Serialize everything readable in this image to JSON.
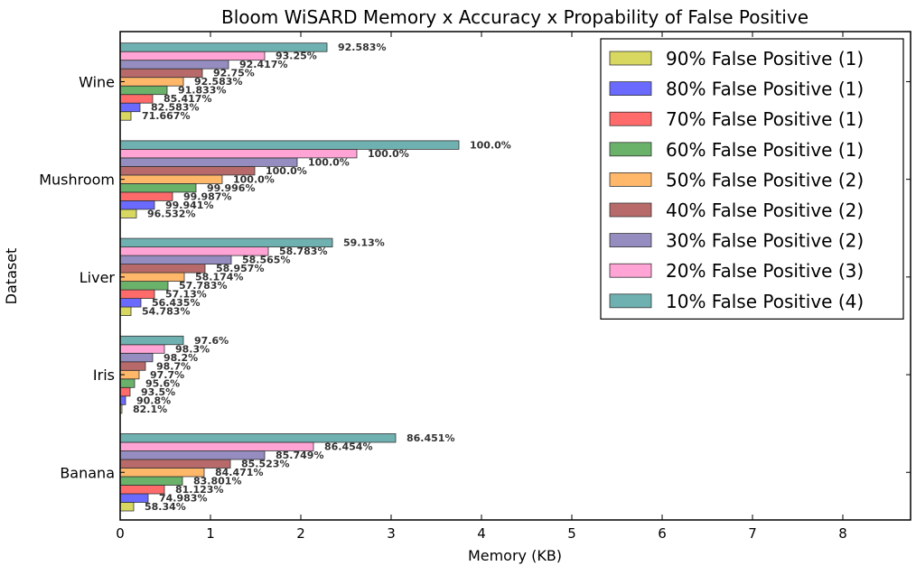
{
  "chart_data": {
    "type": "bar",
    "orientation": "horizontal",
    "title": "Bloom WiSARD Memory x Accuracy x Propability of False Positive",
    "xlabel": "Memory (KB)",
    "ylabel": "Dataset",
    "xlim": [
      0,
      8.75
    ],
    "xticks": [
      "0",
      "1",
      "2",
      "3",
      "4",
      "5",
      "6",
      "7",
      "8"
    ],
    "categories": [
      "Banana",
      "Iris",
      "Liver",
      "Mushroom",
      "Wine"
    ],
    "legend_position": "top-right",
    "grid": false,
    "series": [
      {
        "name": "90% False Positive (1)",
        "color": "#d4d44f",
        "values": [
          0.15,
          0.02,
          0.12,
          0.18,
          0.12
        ],
        "labels": [
          "58.34%",
          "82.1%",
          "54.783%",
          "96.532%",
          "71.667%"
        ]
      },
      {
        "name": "80% False Positive (1)",
        "color": "#5a5aff",
        "values": [
          0.31,
          0.06,
          0.23,
          0.38,
          0.22
        ],
        "labels": [
          "74.983%",
          "90.8%",
          "56.435%",
          "99.941%",
          "82.583%"
        ]
      },
      {
        "name": "70% False Positive (1)",
        "color": "#ff5a5a",
        "values": [
          0.49,
          0.11,
          0.38,
          0.58,
          0.36
        ],
        "labels": [
          "81.123%",
          "93.5%",
          "57.13%",
          "99.987%",
          "85.417%"
        ]
      },
      {
        "name": "60% False Positive (1)",
        "color": "#5aa85a",
        "values": [
          0.69,
          0.16,
          0.53,
          0.84,
          0.52
        ],
        "labels": [
          "83.801%",
          "95.6%",
          "57.783%",
          "99.996%",
          "91.833%"
        ]
      },
      {
        "name": "50% False Positive (2)",
        "color": "#ffb05a",
        "values": [
          0.93,
          0.21,
          0.71,
          1.13,
          0.7
        ],
        "labels": [
          "84.471%",
          "97.7%",
          "58.174%",
          "100.0%",
          "92.583%"
        ]
      },
      {
        "name": "40% False Positive (2)",
        "color": "#b05a5a",
        "values": [
          1.22,
          0.28,
          0.94,
          1.49,
          0.91
        ],
        "labels": [
          "85.523%",
          "98.7%",
          "58.957%",
          "100.0%",
          "92.75%"
        ]
      },
      {
        "name": "30% False Positive (2)",
        "color": "#8a7fb8",
        "values": [
          1.6,
          0.36,
          1.23,
          1.96,
          1.2
        ],
        "labels": [
          "85.749%",
          "98.2%",
          "58.565%",
          "100.0%",
          "92.417%"
        ]
      },
      {
        "name": "20% False Positive (3)",
        "color": "#ff9ad0",
        "values": [
          2.14,
          0.49,
          1.64,
          2.62,
          1.6
        ],
        "labels": [
          "86.454%",
          "98.3%",
          "58.783%",
          "100.0%",
          "93.25%"
        ]
      },
      {
        "name": "10% False Positive (4)",
        "color": "#5fa8a8",
        "values": [
          3.05,
          0.7,
          2.35,
          3.75,
          2.29
        ],
        "labels": [
          "86.451%",
          "97.6%",
          "59.13%",
          "100.0%",
          "92.583%"
        ]
      }
    ]
  }
}
